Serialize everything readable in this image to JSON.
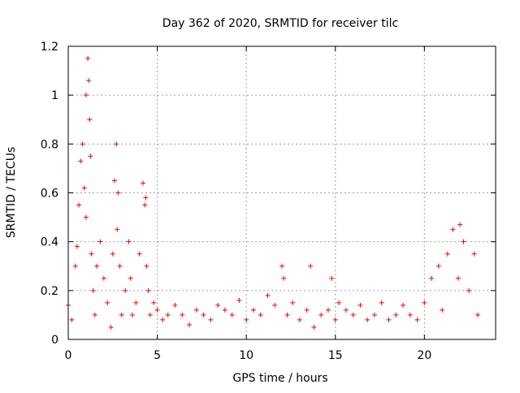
{
  "chart_data": {
    "type": "scatter",
    "title": "Day 362 of 2020, SRMTID for receiver tilc",
    "xlabel": "GPS time / hours",
    "ylabel": "SRMTID / TECUs",
    "xlim": [
      0,
      24
    ],
    "ylim": [
      0,
      1.2
    ],
    "x_ticks": [
      0,
      5,
      10,
      15,
      20
    ],
    "y_ticks": [
      0,
      0.2,
      0.4,
      0.6,
      0.8,
      1,
      1.2
    ],
    "x_tick_labels": [
      "0",
      "5",
      "10",
      "15",
      "20"
    ],
    "y_tick_labels": [
      "0",
      "0.2",
      "0.4",
      "0.6",
      "0.8",
      "1",
      "1.2"
    ],
    "grid": true,
    "marker": "+",
    "color": "#ff0000",
    "series": [
      {
        "x": [
          0.0,
          0.2,
          0.4,
          0.5,
          0.6,
          0.7,
          0.8,
          0.9,
          1.0,
          1.0,
          1.1,
          1.15,
          1.2,
          1.25,
          1.3,
          1.4,
          1.5,
          1.6,
          1.8,
          2.0,
          2.2,
          2.4,
          2.5,
          2.6,
          2.7,
          2.75,
          2.8,
          2.9,
          3.0,
          3.2,
          3.4,
          3.5,
          3.6,
          3.8,
          4.0,
          4.2,
          4.3,
          4.35,
          4.4,
          4.5,
          4.6,
          4.8,
          5.0,
          5.3,
          5.6,
          6.0,
          6.4,
          6.8,
          7.2,
          7.6,
          8.0,
          8.4,
          8.8,
          9.2,
          9.6,
          10.0,
          10.4,
          10.8,
          11.2,
          11.6,
          12.0,
          12.1,
          12.3,
          12.6,
          13.0,
          13.4,
          13.6,
          13.8,
          14.2,
          14.6,
          14.8,
          15.0,
          15.2,
          15.6,
          16.0,
          16.4,
          16.8,
          17.2,
          17.6,
          18.0,
          18.4,
          18.8,
          19.2,
          19.6,
          20.0,
          20.4,
          20.8,
          21.0,
          21.3,
          21.6,
          21.9,
          22.0,
          22.2,
          22.5,
          22.8,
          23.0
        ],
        "y": [
          0.14,
          0.08,
          0.3,
          0.38,
          0.55,
          0.73,
          0.8,
          0.62,
          0.5,
          1.0,
          1.15,
          1.06,
          0.9,
          0.75,
          0.35,
          0.2,
          0.1,
          0.3,
          0.4,
          0.25,
          0.15,
          0.05,
          0.35,
          0.65,
          0.8,
          0.45,
          0.6,
          0.3,
          0.1,
          0.2,
          0.4,
          0.25,
          0.1,
          0.15,
          0.35,
          0.64,
          0.55,
          0.58,
          0.3,
          0.2,
          0.1,
          0.15,
          0.12,
          0.08,
          0.1,
          0.14,
          0.1,
          0.06,
          0.12,
          0.1,
          0.08,
          0.14,
          0.12,
          0.1,
          0.16,
          0.08,
          0.12,
          0.1,
          0.18,
          0.14,
          0.3,
          0.25,
          0.1,
          0.15,
          0.08,
          0.12,
          0.3,
          0.05,
          0.1,
          0.12,
          0.25,
          0.08,
          0.15,
          0.12,
          0.1,
          0.14,
          0.08,
          0.1,
          0.15,
          0.08,
          0.1,
          0.14,
          0.1,
          0.08,
          0.15,
          0.25,
          0.3,
          0.12,
          0.35,
          0.45,
          0.25,
          0.47,
          0.4,
          0.2,
          0.35,
          0.1
        ]
      }
    ]
  }
}
